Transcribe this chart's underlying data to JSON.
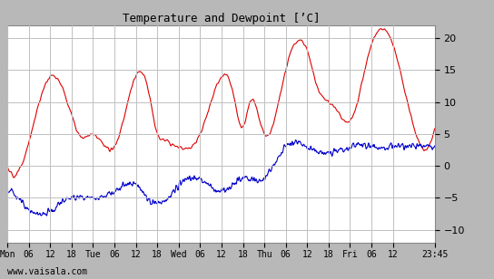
{
  "title": "Temperature and Dewpoint [’C]",
  "yticks": [
    -10,
    -5,
    0,
    5,
    10,
    15,
    20
  ],
  "ylim": [
    -12.0,
    22.0
  ],
  "xtick_labels": [
    "Mon",
    "06",
    "12",
    "18",
    "Tue",
    "06",
    "12",
    "18",
    "Wed",
    "06",
    "12",
    "18",
    "Thu",
    "06",
    "12",
    "18",
    "Fri",
    "06",
    "12",
    "23:45"
  ],
  "watermark": "www.vaisala.com",
  "temp_color": "#dd0000",
  "dewpoint_color": "#0000cc",
  "bg_color": "#b8b8b8",
  "plot_bg_color": "#ffffff",
  "grid_color": "#c0c0c0",
  "line_width": 0.8,
  "total_hours": 119.75,
  "tick_positions_hours": [
    0,
    6,
    12,
    18,
    24,
    30,
    36,
    42,
    48,
    54,
    60,
    66,
    72,
    78,
    84,
    90,
    96,
    102,
    108,
    119.75
  ],
  "temp_keypoints_h": [
    0,
    3,
    12,
    18,
    20,
    24,
    30,
    36,
    39,
    42,
    44,
    48,
    54,
    60,
    63,
    66,
    68,
    72,
    78,
    84,
    87,
    90,
    92,
    96,
    102,
    108,
    110,
    119.75
  ],
  "temp_keypoints_v": [
    0,
    -1,
    14,
    8,
    5,
    5,
    3,
    14,
    13,
    5,
    4,
    3,
    5,
    14,
    12,
    6,
    10,
    5,
    15,
    18,
    12,
    10,
    9,
    7,
    19,
    19,
    15,
    6
  ],
  "dew_keypoints_h": [
    0,
    3,
    6,
    12,
    18,
    24,
    30,
    36,
    42,
    48,
    54,
    60,
    66,
    72,
    78,
    84,
    90,
    96,
    102,
    108,
    114,
    119.75
  ],
  "dew_keypoints_v": [
    -4,
    -5,
    -7,
    -7,
    -5,
    -5,
    -4,
    -3,
    -6,
    -3,
    -2,
    -4,
    -2,
    -2,
    3,
    3,
    2,
    3,
    3,
    3,
    3,
    3
  ]
}
